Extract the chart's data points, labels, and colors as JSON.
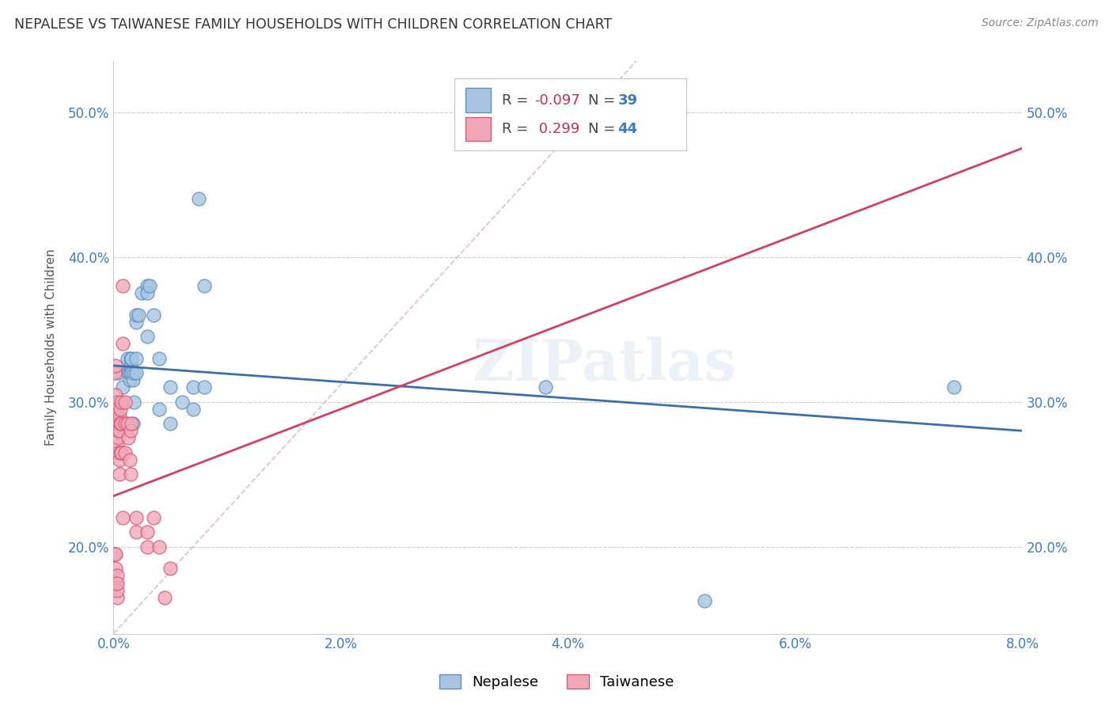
{
  "title": "NEPALESE VS TAIWANESE FAMILY HOUSEHOLDS WITH CHILDREN CORRELATION CHART",
  "source": "Source: ZipAtlas.com",
  "xlabel_ticks": [
    "0.0%",
    "2.0%",
    "4.0%",
    "6.0%",
    "8.0%"
  ],
  "xlabel_tick_vals": [
    0.0,
    0.02,
    0.04,
    0.06,
    0.08
  ],
  "ylabel_ticks": [
    "20.0%",
    "30.0%",
    "40.0%",
    "50.0%"
  ],
  "ylabel_tick_vals": [
    0.2,
    0.3,
    0.4,
    0.5
  ],
  "xlim": [
    0.0,
    0.08
  ],
  "ylim": [
    0.14,
    0.535
  ],
  "watermark": "ZIPatlas",
  "legend_R_nepalese": "-0.097",
  "legend_N_nepalese": "39",
  "legend_R_taiwanese": "0.299",
  "legend_N_taiwanese": "44",
  "nepalese_color": "#a8c4e0",
  "nepalese_edge_color": "#5a8fc0",
  "taiwanese_color": "#f0a8b8",
  "taiwanese_edge_color": "#d45a78",
  "nepalese_line_color": "#3d6fa8",
  "taiwanese_line_color": "#d04060",
  "diagonal_color": "#d4a0a8",
  "nepalese_x": [
    0.0004,
    0.0008,
    0.001,
    0.0012,
    0.0013,
    0.0014,
    0.0014,
    0.0015,
    0.0015,
    0.0016,
    0.0016,
    0.0017,
    0.0017,
    0.0018,
    0.0018,
    0.002,
    0.002,
    0.002,
    0.002,
    0.0022,
    0.0025,
    0.003,
    0.003,
    0.003,
    0.0032,
    0.0035,
    0.004,
    0.004,
    0.005,
    0.005,
    0.006,
    0.007,
    0.007,
    0.0075,
    0.008,
    0.008,
    0.038,
    0.052,
    0.074
  ],
  "nepalese_y": [
    0.32,
    0.31,
    0.285,
    0.33,
    0.32,
    0.315,
    0.32,
    0.325,
    0.33,
    0.32,
    0.33,
    0.285,
    0.315,
    0.32,
    0.3,
    0.355,
    0.32,
    0.33,
    0.36,
    0.36,
    0.375,
    0.38,
    0.375,
    0.345,
    0.38,
    0.36,
    0.33,
    0.295,
    0.285,
    0.31,
    0.3,
    0.295,
    0.31,
    0.44,
    0.38,
    0.31,
    0.31,
    0.163,
    0.31
  ],
  "taiwanese_x": [
    0.0001,
    0.0001,
    0.0002,
    0.0002,
    0.0002,
    0.0003,
    0.0003,
    0.0003,
    0.0003,
    0.0003,
    0.0004,
    0.0004,
    0.0004,
    0.0004,
    0.0005,
    0.0005,
    0.0005,
    0.0005,
    0.0006,
    0.0006,
    0.0006,
    0.0007,
    0.0007,
    0.0007,
    0.0008,
    0.0008,
    0.0008,
    0.001,
    0.001,
    0.001,
    0.0012,
    0.0013,
    0.0014,
    0.0015,
    0.0015,
    0.0016,
    0.002,
    0.002,
    0.003,
    0.003,
    0.0035,
    0.004,
    0.0045,
    0.005
  ],
  "taiwanese_y": [
    0.32,
    0.285,
    0.29,
    0.305,
    0.325,
    0.27,
    0.285,
    0.3,
    0.285,
    0.295,
    0.275,
    0.265,
    0.28,
    0.285,
    0.26,
    0.25,
    0.28,
    0.29,
    0.265,
    0.285,
    0.295,
    0.285,
    0.265,
    0.3,
    0.22,
    0.34,
    0.38,
    0.285,
    0.265,
    0.3,
    0.285,
    0.275,
    0.26,
    0.25,
    0.28,
    0.285,
    0.22,
    0.21,
    0.2,
    0.21,
    0.22,
    0.2,
    0.165,
    0.185
  ],
  "taiwanese_outlier_x": [
    0.0001,
    0.0001,
    0.0002,
    0.0002,
    0.0002,
    0.0003,
    0.0003,
    0.0003,
    0.0003
  ],
  "taiwanese_low_y": [
    0.195,
    0.175,
    0.195,
    0.185,
    0.175,
    0.165,
    0.17,
    0.18,
    0.175
  ]
}
